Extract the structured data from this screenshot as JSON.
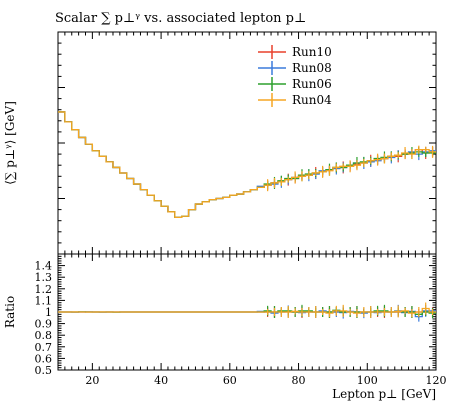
{
  "chart_data": {
    "type": "line",
    "title": "Scalar ∑ p⊥ᵞ vs. associated lepton p⊥",
    "xlabel": "Lepton p⊥ [GeV]",
    "ylabel": "⟨∑ p⊥ᵞ⟩ [GeV]",
    "ratio_ylabel": "Ratio",
    "xlim": [
      10,
      120
    ],
    "x_ticks": [
      "20",
      "40",
      "60",
      "80",
      "100",
      "120"
    ],
    "y_ticks": [],
    "ratio_ylim": [
      0.5,
      1.5
    ],
    "ratio_ticks": [
      "0.5",
      "0.6",
      "0.7",
      "0.8",
      "0.9",
      "1",
      "1.1",
      "1.2",
      "1.3",
      "1.4"
    ],
    "legend_position": "top-right",
    "bin_edges": [
      10,
      12,
      14,
      16,
      18,
      20,
      22,
      24,
      26,
      28,
      30,
      32,
      34,
      36,
      38,
      40,
      42,
      44,
      46,
      48,
      50,
      52,
      54,
      56,
      58,
      60,
      62,
      64,
      66,
      68,
      70,
      72,
      74,
      76,
      78,
      80,
      82,
      84,
      86,
      88,
      90,
      92,
      94,
      96,
      98,
      100,
      102,
      104,
      106,
      108,
      110,
      112,
      114,
      116,
      118,
      120
    ],
    "series": [
      {
        "name": "Run10",
        "color": "#e8412c",
        "values": [
          0.64,
          0.595,
          0.56,
          0.525,
          0.495,
          0.465,
          0.44,
          0.415,
          0.39,
          0.365,
          0.34,
          0.315,
          0.29,
          0.265,
          0.24,
          0.215,
          0.19,
          0.165,
          0.17,
          0.2,
          0.225,
          0.235,
          0.245,
          0.25,
          0.255,
          0.265,
          0.27,
          0.28,
          0.29,
          0.3,
          0.31,
          0.32,
          0.325,
          0.335,
          0.34,
          0.35,
          0.355,
          0.365,
          0.37,
          0.38,
          0.385,
          0.39,
          0.395,
          0.405,
          0.41,
          0.42,
          0.425,
          0.43,
          0.44,
          0.44,
          0.45,
          0.455,
          0.47,
          0.455,
          0.46
        ],
        "ratio": [
          1.0,
          1.0,
          1.0,
          1.0,
          1.0,
          1.0,
          1.0,
          1.0,
          1.0,
          1.0,
          1.0,
          1.0,
          1.0,
          1.0,
          1.0,
          1.0,
          1.0,
          1.0,
          1.0,
          1.0,
          1.0,
          1.0,
          1.0,
          1.0,
          1.0,
          1.0,
          1.0,
          1.0,
          1.0,
          1.0,
          1.0,
          1.0,
          1.0,
          1.0,
          1.0,
          1.0,
          1.0,
          1.0,
          1.0,
          1.0,
          1.0,
          1.0,
          1.0,
          1.0,
          1.0,
          1.0,
          1.0,
          1.0,
          1.0,
          1.0,
          1.0,
          1.0,
          1.0,
          1.0,
          1.0
        ]
      },
      {
        "name": "Run08",
        "color": "#3b7bdc",
        "values": [
          0.64,
          0.595,
          0.56,
          0.525,
          0.495,
          0.465,
          0.44,
          0.415,
          0.39,
          0.365,
          0.34,
          0.315,
          0.29,
          0.265,
          0.24,
          0.215,
          0.19,
          0.165,
          0.17,
          0.2,
          0.225,
          0.235,
          0.245,
          0.25,
          0.255,
          0.265,
          0.27,
          0.28,
          0.29,
          0.305,
          0.31,
          0.315,
          0.325,
          0.335,
          0.345,
          0.35,
          0.355,
          0.36,
          0.375,
          0.38,
          0.385,
          0.39,
          0.4,
          0.41,
          0.41,
          0.415,
          0.42,
          0.43,
          0.435,
          0.445,
          0.45,
          0.46,
          0.45,
          0.46,
          0.465
        ],
        "ratio": [
          1.0,
          1.0,
          0.999,
          1.0,
          1.001,
          1.0,
          0.999,
          1.0,
          1.0,
          1.0,
          1.0,
          1.0,
          1.0,
          1.0,
          1.0,
          1.0,
          1.0,
          1.0,
          1.0,
          1.0,
          1.0,
          1.0,
          1.0,
          1.0,
          1.0,
          1.0,
          1.0,
          1.0,
          1.0,
          1.005,
          1.0,
          0.99,
          1.0,
          1.005,
          1.0,
          0.995,
          1.0,
          1.0,
          1.01,
          1.0,
          1.0,
          0.995,
          1.005,
          1.0,
          0.99,
          1.0,
          0.995,
          1.0,
          1.0,
          1.01,
          0.995,
          1.005,
          0.96,
          1.01,
          1.01
        ]
      },
      {
        "name": "Run06",
        "color": "#2ea02e",
        "values": [
          0.64,
          0.595,
          0.56,
          0.525,
          0.495,
          0.465,
          0.44,
          0.415,
          0.39,
          0.365,
          0.34,
          0.315,
          0.29,
          0.265,
          0.24,
          0.215,
          0.19,
          0.165,
          0.17,
          0.2,
          0.225,
          0.235,
          0.245,
          0.25,
          0.255,
          0.265,
          0.27,
          0.28,
          0.29,
          0.3,
          0.315,
          0.32,
          0.33,
          0.34,
          0.34,
          0.355,
          0.36,
          0.365,
          0.37,
          0.38,
          0.39,
          0.39,
          0.4,
          0.41,
          0.415,
          0.42,
          0.43,
          0.435,
          0.44,
          0.445,
          0.45,
          0.455,
          0.46,
          0.455,
          0.455
        ],
        "ratio": [
          1.0,
          1.0,
          1.0,
          1.001,
          1.0,
          1.0,
          1.0,
          1.0,
          0.999,
          1.0,
          1.0,
          1.0,
          1.0,
          1.0,
          1.0,
          1.0,
          1.0,
          1.0,
          1.0,
          1.0,
          1.0,
          1.0,
          1.0,
          1.0,
          1.0,
          1.0,
          1.0,
          1.0,
          1.0,
          1.0,
          1.01,
          1.0,
          1.01,
          1.01,
          1.0,
          1.01,
          1.01,
          1.0,
          1.0,
          1.0,
          1.015,
          1.0,
          1.0,
          1.0,
          1.0,
          1.0,
          1.01,
          1.01,
          1.0,
          1.005,
          1.0,
          1.0,
          0.98,
          1.0,
          0.99
        ]
      },
      {
        "name": "Run04",
        "color": "#f5a623",
        "values": [
          0.64,
          0.595,
          0.56,
          0.525,
          0.495,
          0.465,
          0.44,
          0.415,
          0.39,
          0.365,
          0.34,
          0.315,
          0.29,
          0.265,
          0.24,
          0.215,
          0.19,
          0.165,
          0.17,
          0.2,
          0.225,
          0.235,
          0.245,
          0.25,
          0.255,
          0.265,
          0.27,
          0.28,
          0.29,
          0.3,
          0.31,
          0.32,
          0.325,
          0.335,
          0.345,
          0.35,
          0.355,
          0.365,
          0.37,
          0.375,
          0.39,
          0.395,
          0.395,
          0.4,
          0.41,
          0.42,
          0.425,
          0.43,
          0.44,
          0.445,
          0.455,
          0.45,
          0.47,
          0.47,
          0.46
        ],
        "ratio": [
          1.0,
          1.0,
          1.0,
          1.0,
          1.0,
          1.0,
          1.0,
          1.0,
          1.0,
          1.0,
          1.0,
          1.0,
          1.0,
          1.0,
          1.0,
          1.0,
          1.0,
          1.0,
          1.0,
          1.0,
          1.0,
          1.0,
          1.0,
          1.0,
          1.0,
          1.0,
          1.0,
          1.0,
          1.0,
          1.0,
          1.0,
          1.0,
          1.0,
          1.0,
          1.005,
          1.0,
          1.0,
          1.0,
          1.0,
          0.99,
          1.01,
          1.01,
          1.0,
          0.99,
          1.0,
          1.0,
          1.0,
          1.0,
          1.0,
          1.005,
          1.01,
          0.99,
          1.0,
          1.03,
          1.0
        ]
      }
    ]
  }
}
